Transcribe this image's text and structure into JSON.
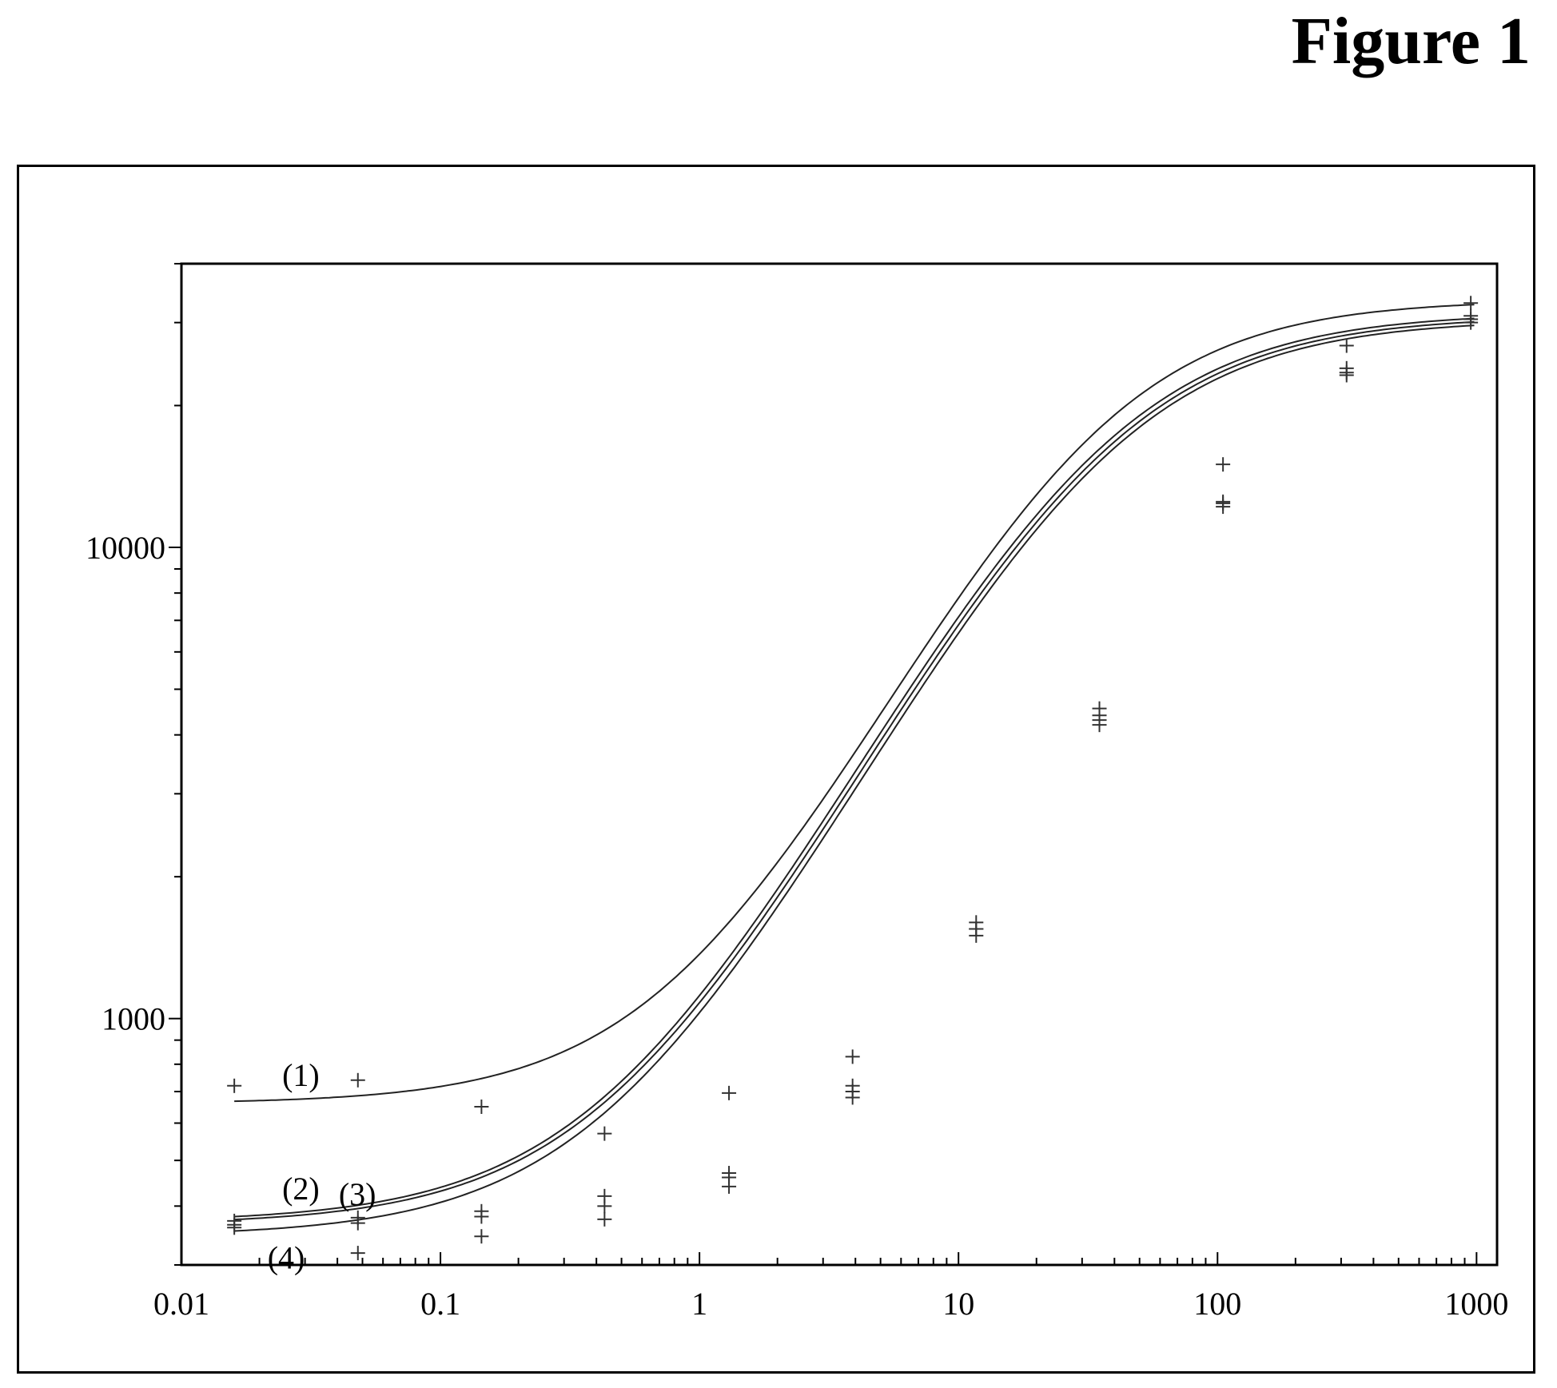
{
  "figure": {
    "title": "Figure 1"
  },
  "chart_data": {
    "type": "scatter",
    "xscale": "log",
    "yscale": "log",
    "xlim": [
      0.01,
      1200
    ],
    "ylim": [
      300,
      40000
    ],
    "x_ticks": [
      0.01,
      0.1,
      1,
      10,
      100,
      1000
    ],
    "x_tick_labels": [
      "0.01",
      "0.1",
      "1",
      "10",
      "100",
      "1000"
    ],
    "y_ticks": [
      1000,
      10000
    ],
    "y_tick_labels": [
      "1000",
      "10000"
    ],
    "title": "",
    "xlabel": "",
    "ylabel": "",
    "grid": false,
    "legend": "none",
    "series": [
      {
        "label": "(1)",
        "bottom": 660,
        "top": 33500,
        "ec50": 32,
        "hill": 1.1,
        "points": [
          [
            0.016,
            720
          ],
          [
            0.048,
            740
          ],
          [
            0.144,
            650
          ],
          [
            0.43,
            570
          ],
          [
            1.3,
            695
          ],
          [
            3.9,
            830
          ],
          [
            11.7,
            1600
          ],
          [
            35,
            4550
          ],
          [
            105,
            15000
          ],
          [
            315,
            26800
          ],
          [
            950,
            33000
          ]
        ]
      },
      {
        "label": "(2)",
        "bottom": 370,
        "top": 31500,
        "ec50": 34,
        "hill": 1.05,
        "points": [
          [
            0.016,
            372
          ],
          [
            0.048,
            378
          ],
          [
            0.144,
            390
          ],
          [
            0.43,
            420
          ],
          [
            1.3,
            470
          ],
          [
            3.9,
            720
          ],
          [
            11.7,
            1550
          ],
          [
            35,
            4400
          ],
          [
            105,
            12500
          ],
          [
            315,
            24000
          ],
          [
            950,
            31000
          ]
        ]
      },
      {
        "label": "(3)",
        "bottom": 365,
        "top": 31000,
        "ec50": 35,
        "hill": 1.05,
        "points": [
          [
            0.016,
            365
          ],
          [
            0.048,
            368
          ],
          [
            0.144,
            380
          ],
          [
            0.43,
            400
          ],
          [
            1.3,
            460
          ],
          [
            3.9,
            700
          ],
          [
            11.7,
            1500
          ],
          [
            35,
            4300
          ],
          [
            105,
            12200
          ],
          [
            315,
            23500
          ],
          [
            950,
            30500
          ]
        ]
      },
      {
        "label": "(4)",
        "bottom": 345,
        "top": 30500,
        "ec50": 36,
        "hill": 1.05,
        "points": [
          [
            0.016,
            360
          ],
          [
            0.048,
            318
          ],
          [
            0.144,
            345
          ],
          [
            0.43,
            375
          ],
          [
            1.3,
            440
          ],
          [
            3.9,
            680
          ],
          [
            11.7,
            1550
          ],
          [
            35,
            4200
          ],
          [
            105,
            12400
          ],
          [
            315,
            23200
          ],
          [
            950,
            30000
          ]
        ]
      }
    ]
  }
}
